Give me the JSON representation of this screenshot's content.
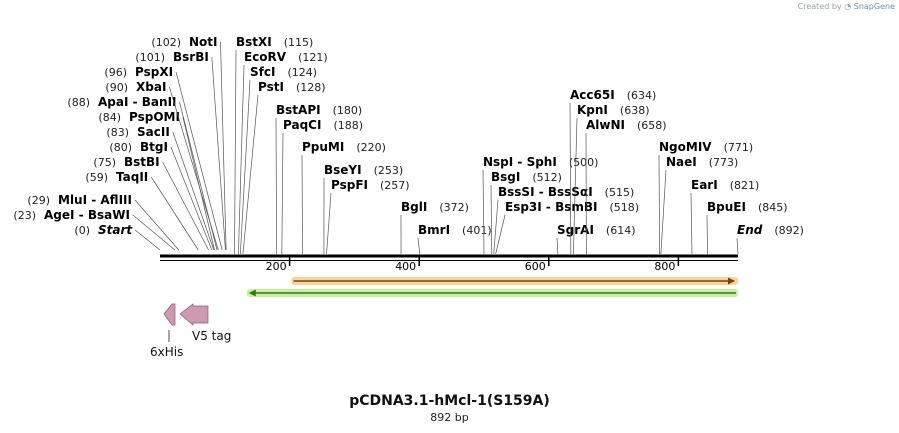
{
  "credit": {
    "prefix": "Created by",
    "brand": "SnapGene"
  },
  "plasmid": {
    "name": "pCDNA3.1-hMcl-1(S159A)",
    "length_label": "892 bp",
    "length": 892
  },
  "sites": [
    {
      "label": "Start",
      "pos_label": "(0)",
      "bp": 0,
      "italic": true
    },
    {
      "label": "AgeI - BsaWI",
      "pos_label": "(23)",
      "bp": 23
    },
    {
      "label": "MluI - AflIII",
      "pos_label": "(29)",
      "bp": 29
    },
    {
      "label": "TaqII",
      "pos_label": "(59)",
      "bp": 59
    },
    {
      "label": "BstBI",
      "pos_label": "(75)",
      "bp": 75
    },
    {
      "label": "BtgI",
      "pos_label": "(80)",
      "bp": 80
    },
    {
      "label": "SacII",
      "pos_label": "(83)",
      "bp": 83
    },
    {
      "label": "PspOMI",
      "pos_label": "(84)",
      "bp": 84
    },
    {
      "label": "ApaI - BanII",
      "pos_label": "(88)",
      "bp": 88
    },
    {
      "label": "XbaI",
      "pos_label": "(90)",
      "bp": 90
    },
    {
      "label": "PspXI",
      "pos_label": "(96)",
      "bp": 96
    },
    {
      "label": "BsrBI",
      "pos_label": "(101)",
      "bp": 101
    },
    {
      "label": "NotI",
      "pos_label": "(102)",
      "bp": 102
    },
    {
      "label": "BstXI",
      "pos_label": "(115)",
      "bp": 115
    },
    {
      "label": "EcoRV",
      "pos_label": "(121)",
      "bp": 121
    },
    {
      "label": "SfcI",
      "pos_label": "(124)",
      "bp": 124
    },
    {
      "label": "PstI",
      "pos_label": "(128)",
      "bp": 128
    },
    {
      "label": "BstAPI",
      "pos_label": "(180)",
      "bp": 180
    },
    {
      "label": "PaqCI",
      "pos_label": "(188)",
      "bp": 188
    },
    {
      "label": "PpuMI",
      "pos_label": "(220)",
      "bp": 220
    },
    {
      "label": "BseYI",
      "pos_label": "(253)",
      "bp": 253
    },
    {
      "label": "PspFI",
      "pos_label": "(257)",
      "bp": 257
    },
    {
      "label": "BglI",
      "pos_label": "(372)",
      "bp": 372
    },
    {
      "label": "BmrI",
      "pos_label": "(401)",
      "bp": 401
    },
    {
      "label": "NspI - SphI",
      "pos_label": "(500)",
      "bp": 500
    },
    {
      "label": "BsgI",
      "pos_label": "(512)",
      "bp": 512
    },
    {
      "label": "BssSI - BssSαI",
      "pos_label": "(515)",
      "bp": 515
    },
    {
      "label": "Esp3I - BsmBI",
      "pos_label": "(518)",
      "bp": 518
    },
    {
      "label": "SgrAI",
      "pos_label": "(614)",
      "bp": 614
    },
    {
      "label": "Acc65I",
      "pos_label": "(634)",
      "bp": 634
    },
    {
      "label": "KpnI",
      "pos_label": "(638)",
      "bp": 638
    },
    {
      "label": "AlwNI",
      "pos_label": "(658)",
      "bp": 658
    },
    {
      "label": "NgoMIV",
      "pos_label": "(771)",
      "bp": 771
    },
    {
      "label": "NaeI",
      "pos_label": "(773)",
      "bp": 773
    },
    {
      "label": "EarI",
      "pos_label": "(821)",
      "bp": 821
    },
    {
      "label": "BpuEI",
      "pos_label": "(845)",
      "bp": 845
    },
    {
      "label": "End",
      "pos_label": "(892)",
      "bp": 892,
      "italic": true
    }
  ],
  "ticks": [
    {
      "bp": 200,
      "label": "200"
    },
    {
      "bp": 400,
      "label": "400"
    },
    {
      "bp": 600,
      "label": "600"
    },
    {
      "bp": 800,
      "label": "800"
    }
  ],
  "features": [
    {
      "name": "orange-feature",
      "start": 206,
      "end": 892,
      "color": "#f6d49c",
      "stroke": "#8a3a10",
      "direction": "forward"
    },
    {
      "name": "green-feature",
      "start": 137,
      "end": 892,
      "color": "#c8f0a0",
      "stroke": "#2f7a10",
      "direction": "reverse"
    },
    {
      "name": "6xHis",
      "label": "6xHis",
      "color": "#cf9ab0",
      "direction": "reverse"
    },
    {
      "name": "V5 tag",
      "label": "V5 tag",
      "color": "#cf9ab0",
      "direction": "reverse"
    }
  ]
}
